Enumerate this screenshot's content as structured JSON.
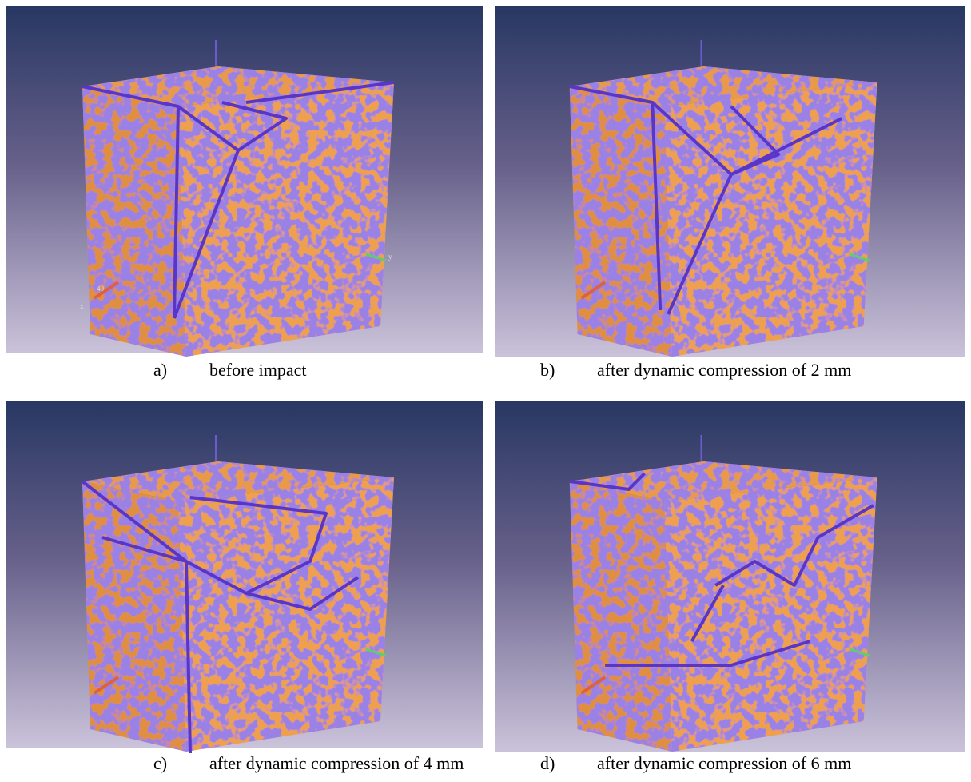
{
  "panels": [
    {
      "label": "a)",
      "caption": "before impact"
    },
    {
      "label": "b)",
      "caption": "after dynamic compression of 2 mm"
    },
    {
      "label": "c)",
      "caption": "after dynamic compression of 4 mm"
    },
    {
      "label": "d)",
      "caption": "after dynamic compression of 6 mm"
    }
  ],
  "axis_labels": {
    "x": "x",
    "y": "y",
    "z": "40"
  }
}
